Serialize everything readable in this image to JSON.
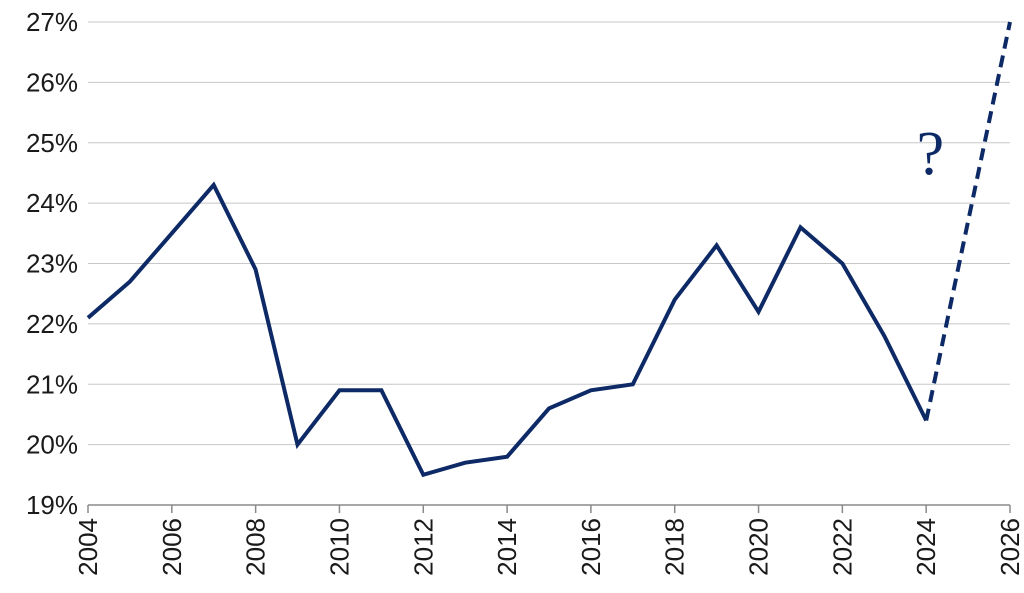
{
  "chart_data": {
    "type": "line",
    "title": "",
    "xlabel": "",
    "ylabel": "",
    "xlim": [
      2004,
      2026
    ],
    "ylim": [
      19,
      27
    ],
    "y_ticks": [
      19,
      20,
      21,
      22,
      23,
      24,
      25,
      26,
      27
    ],
    "y_tick_labels": [
      "19%",
      "20%",
      "21%",
      "22%",
      "23%",
      "24%",
      "25%",
      "26%",
      "27%"
    ],
    "x_ticks": [
      2004,
      2006,
      2008,
      2010,
      2012,
      2014,
      2016,
      2018,
      2020,
      2022,
      2024,
      2026
    ],
    "x_tick_labels": [
      "2004",
      "2006",
      "2008",
      "2010",
      "2012",
      "2014",
      "2016",
      "2018",
      "2020",
      "2022",
      "2024",
      "2026"
    ],
    "grid": "horizontal",
    "line_color": "#0d2a66",
    "series": [
      {
        "style": "solid",
        "x": [
          2004,
          2005,
          2006,
          2007,
          2008,
          2009,
          2010,
          2011,
          2012,
          2013,
          2014,
          2015,
          2016,
          2017,
          2018,
          2019,
          2020,
          2021,
          2022,
          2023,
          2024
        ],
        "y": [
          22.1,
          22.7,
          23.5,
          24.3,
          22.9,
          20.0,
          20.9,
          20.9,
          19.5,
          19.7,
          19.8,
          20.6,
          20.9,
          21.0,
          22.4,
          23.3,
          22.2,
          23.6,
          23.0,
          21.8,
          20.4
        ]
      },
      {
        "style": "dashed",
        "x": [
          2024,
          2026
        ],
        "y": [
          20.4,
          27.0
        ]
      }
    ],
    "annotations": [
      {
        "text": "?",
        "x": 2024.1,
        "y": 24.85
      }
    ]
  }
}
